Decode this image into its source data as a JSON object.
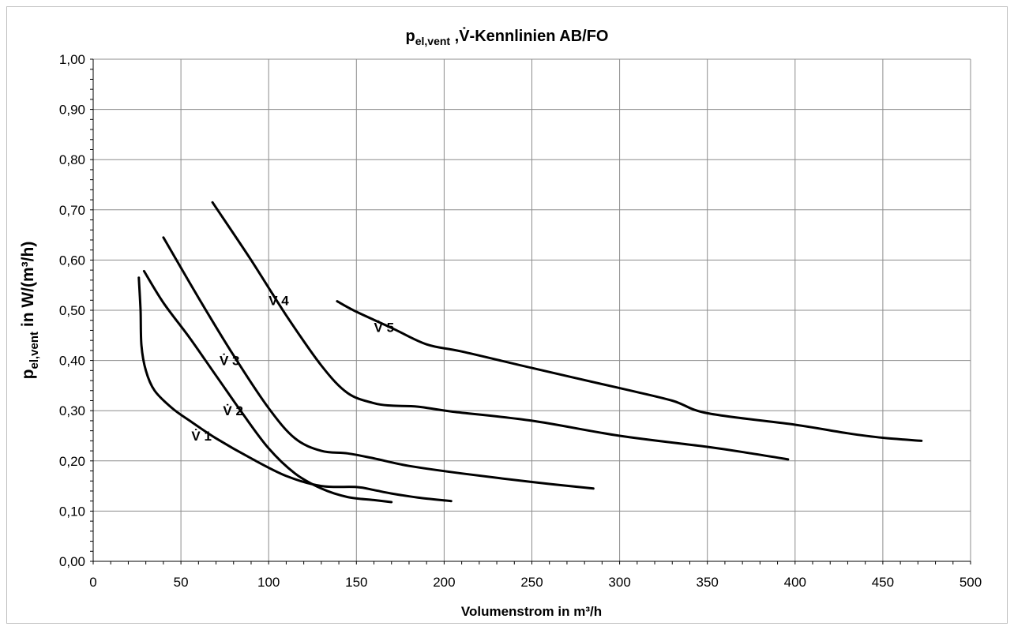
{
  "chart_data": {
    "type": "line",
    "title": "p",
    "title_subscript": "el,vent",
    "title_rest": " ,V̇-Kennlinien AB/FO",
    "xlabel": "Volumenstrom  in m³/h",
    "ylabel_main": "p",
    "ylabel_subscript": "el,vent",
    "ylabel_rest": " in W/(m³/h)",
    "xlim": [
      0,
      500
    ],
    "ylim": [
      0,
      1.0
    ],
    "xticks": [
      0,
      50,
      100,
      150,
      200,
      250,
      300,
      350,
      400,
      450,
      500
    ],
    "xtick_labels": [
      "0",
      "50",
      "100",
      "150",
      "200",
      "250",
      "300",
      "350",
      "400",
      "450",
      "500"
    ],
    "yticks": [
      0,
      0.1,
      0.2,
      0.3,
      0.4,
      0.5,
      0.6,
      0.7,
      0.8,
      0.9,
      1.0
    ],
    "ytick_labels": [
      "0,00",
      "0,10",
      "0,20",
      "0,30",
      "0,40",
      "0,50",
      "0,60",
      "0,70",
      "0,80",
      "0,90",
      "1,00"
    ],
    "grid": true,
    "legend": "none",
    "series_color": "#000000",
    "series": [
      {
        "name": "V̇ 1",
        "label_at": [
          56,
          0.25
        ],
        "x": [
          26,
          27,
          27.5,
          30,
          35,
          45,
          55,
          70,
          90,
          110,
          130,
          150,
          160,
          170,
          185,
          204
        ],
        "y": [
          0.565,
          0.5,
          0.43,
          0.38,
          0.34,
          0.305,
          0.28,
          0.245,
          0.205,
          0.17,
          0.15,
          0.148,
          0.142,
          0.135,
          0.127,
          0.12
        ]
      },
      {
        "name": "V̇ 2",
        "label_at": [
          74,
          0.3
        ],
        "x": [
          29,
          40,
          55,
          70,
          85,
          100,
          115,
          130,
          145,
          160,
          170
        ],
        "y": [
          0.578,
          0.515,
          0.445,
          0.37,
          0.295,
          0.225,
          0.175,
          0.145,
          0.128,
          0.122,
          0.118
        ]
      },
      {
        "name": "V̇ 3",
        "label_at": [
          72,
          0.4
        ],
        "x": [
          40,
          60,
          80,
          100,
          115,
          130,
          145,
          160,
          180,
          210,
          250,
          285
        ],
        "y": [
          0.645,
          0.525,
          0.41,
          0.305,
          0.245,
          0.22,
          0.215,
          0.205,
          0.19,
          0.175,
          0.158,
          0.145
        ]
      },
      {
        "name": "V̇ 4",
        "label_at": [
          100,
          0.52
        ],
        "x": [
          68,
          90,
          110,
          130,
          145,
          160,
          170,
          185,
          205,
          250,
          300,
          350,
          375,
          396
        ],
        "y": [
          0.715,
          0.6,
          0.49,
          0.39,
          0.335,
          0.315,
          0.31,
          0.308,
          0.298,
          0.28,
          0.25,
          0.228,
          0.215,
          0.203
        ]
      },
      {
        "name": "V̇ 5",
        "label_at": [
          160,
          0.466
        ],
        "x": [
          139,
          150,
          170,
          190,
          210,
          250,
          300,
          330,
          350,
          400,
          430,
          450,
          472
        ],
        "y": [
          0.518,
          0.497,
          0.465,
          0.432,
          0.418,
          0.385,
          0.345,
          0.32,
          0.295,
          0.272,
          0.255,
          0.246,
          0.24
        ]
      }
    ]
  }
}
